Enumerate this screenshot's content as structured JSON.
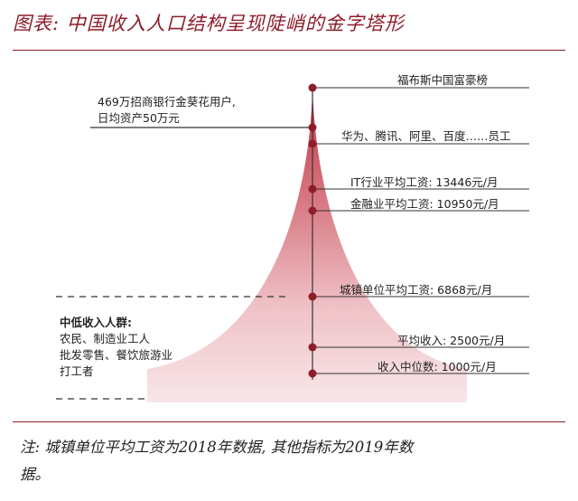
{
  "title": "图表: 中国收入人口结构呈现陡峭的金字塔形",
  "left_callout": {
    "line1": "469万招商银行金葵花用户,",
    "line2": "日均资产50万元"
  },
  "levels": [
    "福布斯中国富豪榜",
    "华为、腾讯、阿里、百度……员工",
    "IT行业平均工资: 13446元/月",
    "金融业平均工资: 10950元/月",
    "城镇单位平均工资: 6868元/月",
    "平均收入: 2500元/月",
    "收入中位数: 1000元/月"
  ],
  "low_income_group": {
    "title": "中低收入人群:",
    "line1": "农民、制造业工人",
    "line2": "批发零售、餐饮旅游业",
    "line3": "打工者"
  },
  "note": {
    "line1": "注: 城镇单位平均工资为2018年数据, 其他指标为2019年数",
    "line2": "据。"
  },
  "colors": {
    "accent": "#8e1d2a",
    "shape_top": "#c0404f",
    "shape_bottom": "#f7e4e6"
  }
}
